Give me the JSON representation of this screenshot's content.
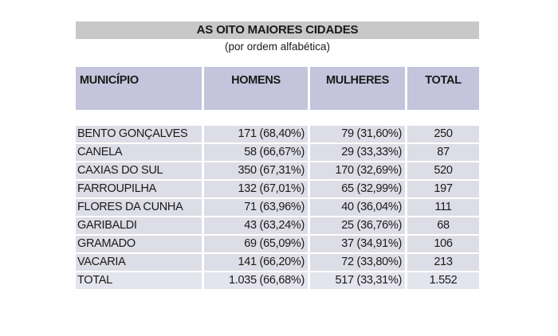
{
  "table": {
    "title": "AS OITO MAIORES CIDADES",
    "subtitle": "(por ordem alfabética)",
    "headers": {
      "municipio": "MUNICÍPIO",
      "homens": "HOMENS",
      "mulheres": "MULHERES",
      "total": "TOTAL"
    },
    "rows": [
      {
        "municipio": "BENTO GONÇALVES",
        "homens": "171 (68,40%)",
        "mulheres": "79 (31,60%)",
        "total": "250"
      },
      {
        "municipio": "CANELA",
        "homens": "58 (66,67%)",
        "mulheres": "29 (33,33%)",
        "total": "87"
      },
      {
        "municipio": "CAXIAS DO SUL",
        "homens": "350 (67,31%)",
        "mulheres": "170 (32,69%)",
        "total": "520"
      },
      {
        "municipio": "FARROUPILHA",
        "homens": "132 (67,01%)",
        "mulheres": "65 (32,99%)",
        "total": "197"
      },
      {
        "municipio": "FLORES DA CUNHA",
        "homens": "71 (63,96%)",
        "mulheres": "40 (36,04%)",
        "total": "111"
      },
      {
        "municipio": "GARIBALDI",
        "homens": "43 (63,24%)",
        "mulheres": "25 (36,76%)",
        "total": "68"
      },
      {
        "municipio": "GRAMADO",
        "homens": "69 (65,09%)",
        "mulheres": "37 (34,91%)",
        "total": "106"
      },
      {
        "municipio": "VACARIA",
        "homens": "141 (66,20%)",
        "mulheres": "72 (33,80%)",
        "total": "213"
      },
      {
        "municipio": "TOTAL",
        "homens": "1.035 (66,68%)",
        "mulheres": "517 (33,31%)",
        "total": "1.552"
      }
    ]
  }
}
